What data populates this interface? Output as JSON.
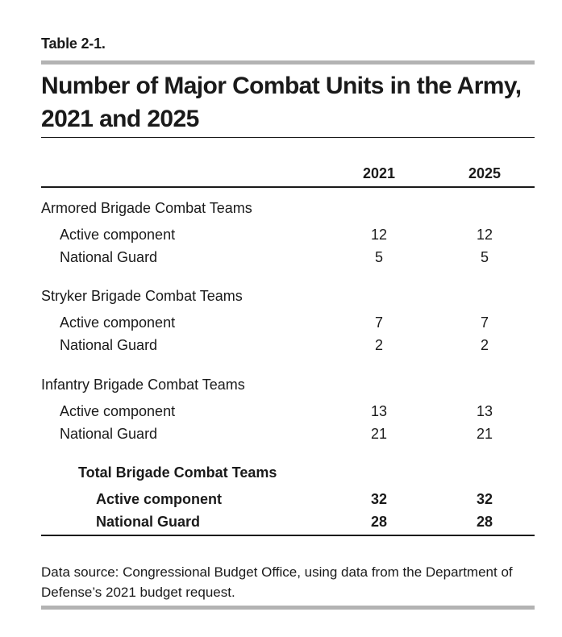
{
  "table_number": "Table 2-1.",
  "title": "Number of Major Combat Units in the Army, 2021 and 2025",
  "columns": [
    "2021",
    "2025"
  ],
  "rows": [
    {
      "label": "Armored Brigade Combat Teams",
      "kind": "group"
    },
    {
      "label": "Active component",
      "kind": "sub",
      "values": [
        "12",
        "12"
      ]
    },
    {
      "label": "National Guard",
      "kind": "sub",
      "values": [
        "5",
        "5"
      ]
    },
    {
      "label": "Stryker Brigade Combat Teams",
      "kind": "group"
    },
    {
      "label": "Active component",
      "kind": "sub",
      "values": [
        "7",
        "7"
      ]
    },
    {
      "label": "National Guard",
      "kind": "sub",
      "values": [
        "2",
        "2"
      ]
    },
    {
      "label": "Infantry Brigade Combat Teams",
      "kind": "group"
    },
    {
      "label": "Active component",
      "kind": "sub",
      "values": [
        "13",
        "13"
      ]
    },
    {
      "label": "National Guard",
      "kind": "sub",
      "values": [
        "21",
        "21"
      ]
    },
    {
      "label": "Total Brigade Combat Teams",
      "kind": "total"
    },
    {
      "label": "Active component",
      "kind": "totsub",
      "values": [
        "32",
        "32"
      ]
    },
    {
      "label": "National Guard",
      "kind": "totsub",
      "values": [
        "28",
        "28"
      ]
    }
  ],
  "source": "Data source: Congressional Budget Office, using data from the Department of Defense’s 2021 budget request."
}
